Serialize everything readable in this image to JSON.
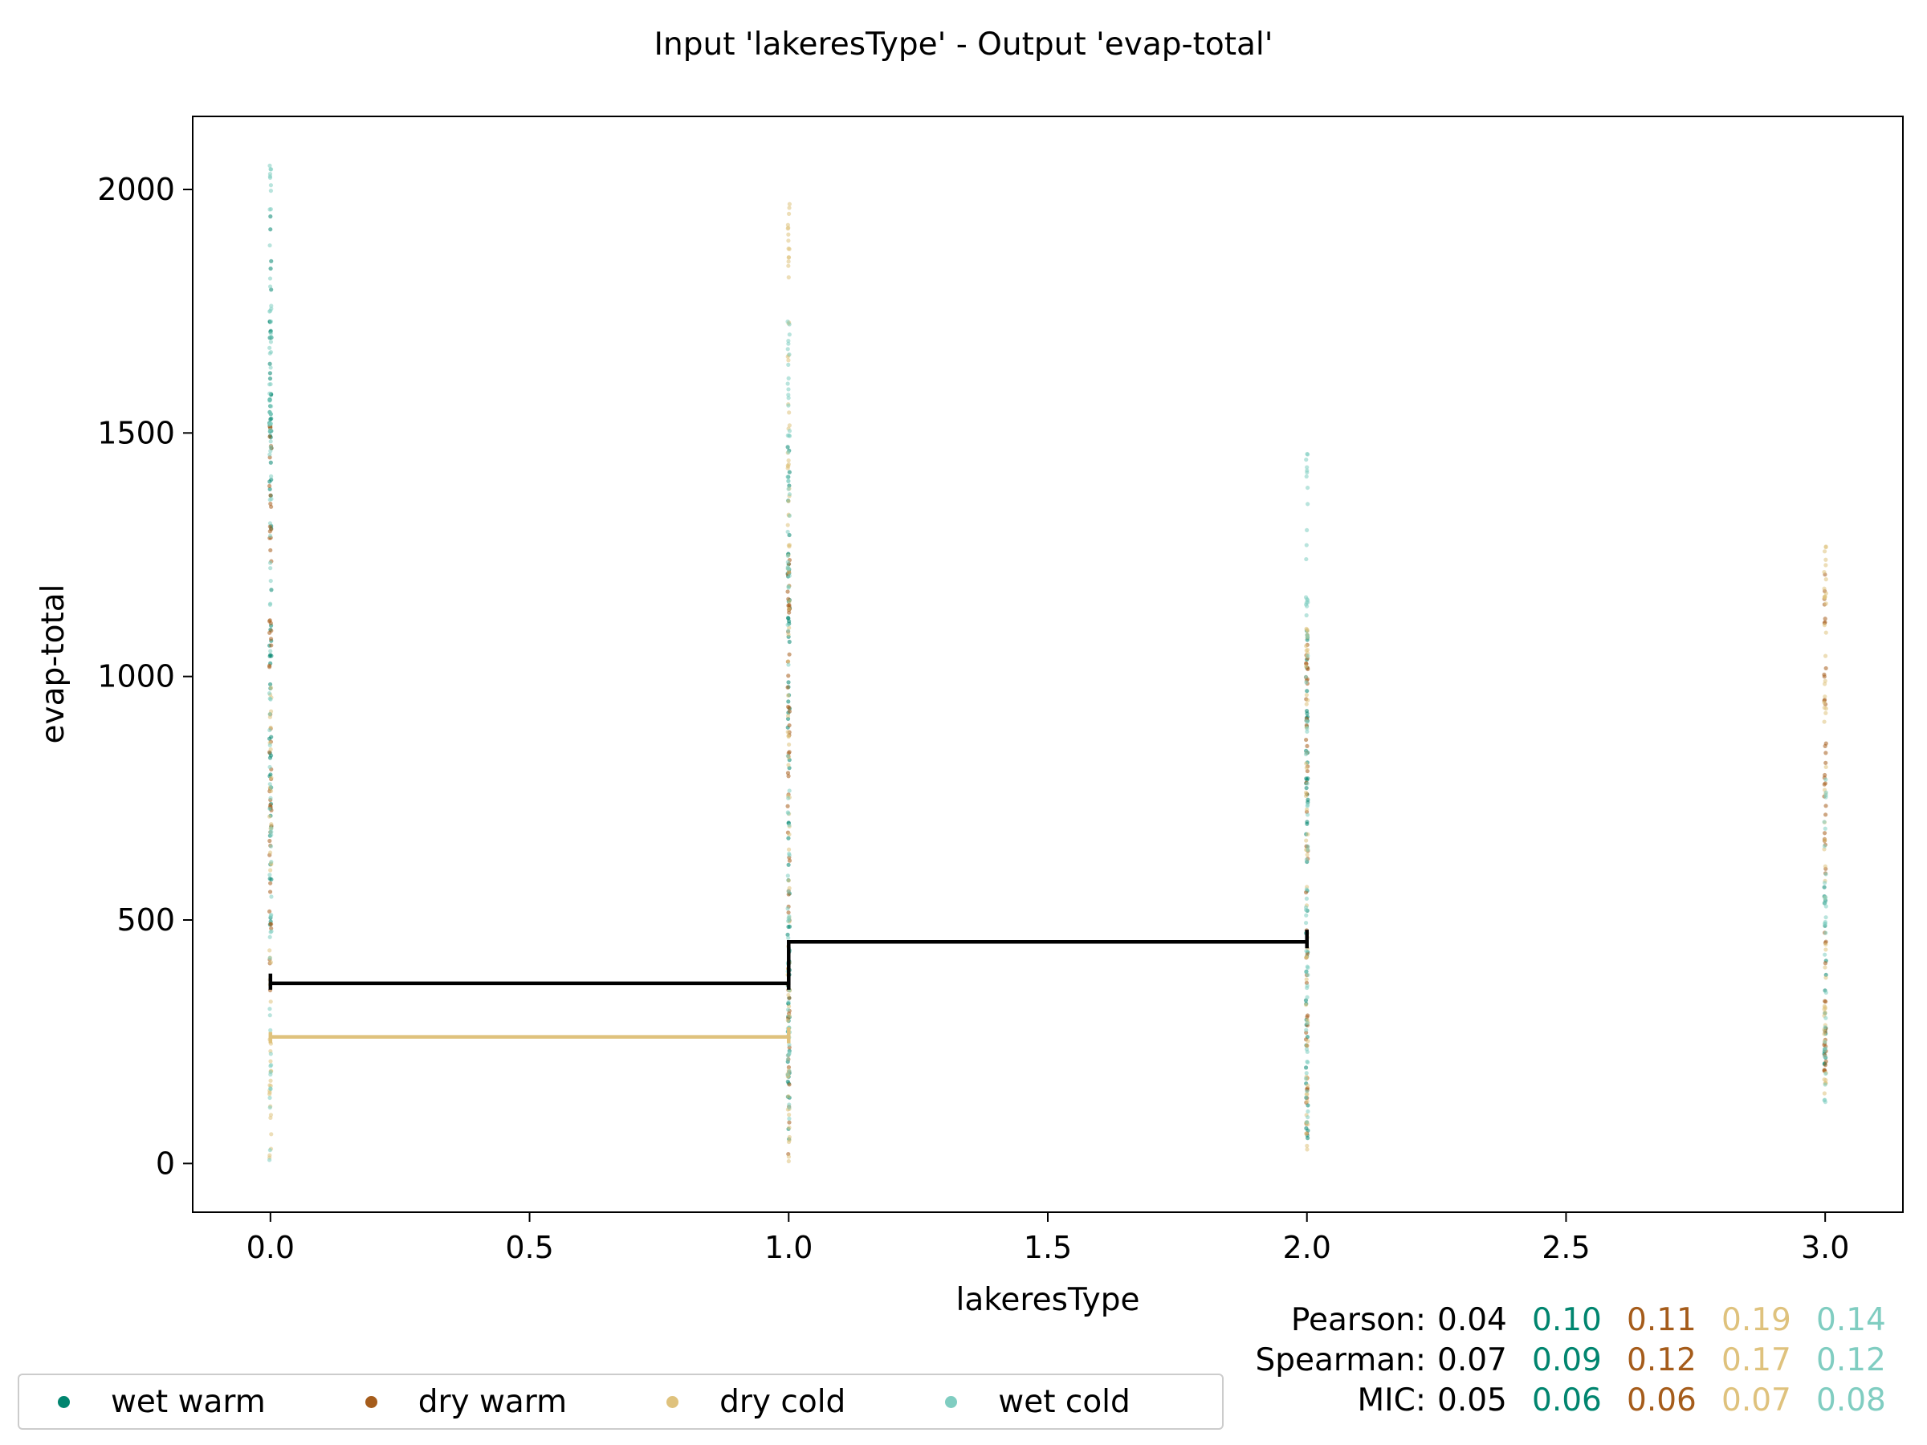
{
  "chart_data": {
    "type": "scatter",
    "title": "Input 'lakeresType' - Output 'evap-total'",
    "xlabel": "lakeresType",
    "ylabel": "evap-total",
    "xlim": [
      -0.15,
      3.15
    ],
    "ylim": [
      -100,
      2150
    ],
    "xticks": [
      0.0,
      0.5,
      1.0,
      1.5,
      2.0,
      2.5,
      3.0
    ],
    "xtick_labels": [
      "0.0",
      "0.5",
      "1.0",
      "1.5",
      "2.0",
      "2.5",
      "3.0"
    ],
    "yticks": [
      0,
      500,
      1000,
      1500,
      2000
    ],
    "ytick_labels": [
      "0",
      "500",
      "1000",
      "1500",
      "2000"
    ],
    "grid": false,
    "legend_position": "bottom-left",
    "series": [
      {
        "name": "wet warm",
        "color": "#01856f",
        "ranges": [
          [
            0,
            480,
            1950
          ],
          [
            1,
            20,
            1500
          ],
          [
            2,
            30,
            1100
          ],
          [
            3,
            200,
            600
          ]
        ]
      },
      {
        "name": "dry warm",
        "color": "#a55c1b",
        "ranges": [
          [
            0,
            350,
            1550
          ],
          [
            1,
            10,
            1250
          ],
          [
            2,
            60,
            1090
          ],
          [
            3,
            180,
            1250
          ]
        ]
      },
      {
        "name": "dry cold",
        "color": "#dfc27d",
        "ranges": [
          [
            0,
            0,
            980
          ],
          [
            1,
            0,
            2020
          ],
          [
            2,
            10,
            1130
          ],
          [
            3,
            130,
            1330
          ]
        ]
      },
      {
        "name": "wet cold",
        "color": "#80cdc1",
        "ranges": [
          [
            0,
            0,
            2050
          ],
          [
            1,
            30,
            1750
          ],
          [
            2,
            50,
            1490
          ],
          [
            3,
            120,
            800
          ]
        ]
      }
    ],
    "step_lines": [
      {
        "color": "#000000",
        "steps": [
          [
            0,
            370
          ],
          [
            1,
            370
          ],
          [
            1,
            455
          ],
          [
            2,
            455
          ]
        ],
        "markers": [
          [
            0,
            390
          ],
          [
            1,
            390
          ],
          [
            2,
            480
          ]
        ]
      },
      {
        "color": "#dfc27d",
        "steps": [
          [
            0,
            260
          ],
          [
            1,
            260
          ]
        ],
        "markers": [
          [
            0,
            270
          ],
          [
            1,
            280
          ]
        ]
      }
    ],
    "stats": [
      {
        "label": "Pearson:",
        "values": [
          "0.04",
          "0.10",
          "0.11",
          "0.19",
          "0.14"
        ]
      },
      {
        "label": "Spearman:",
        "values": [
          "0.07",
          "0.09",
          "0.12",
          "0.17",
          "0.12"
        ]
      },
      {
        "label": "MIC:",
        "values": [
          "0.05",
          "0.06",
          "0.06",
          "0.07",
          "0.08"
        ]
      }
    ],
    "stats_colors": [
      "#000000",
      "#01856f",
      "#a55c1b",
      "#dfc27d",
      "#80cdc1"
    ]
  }
}
